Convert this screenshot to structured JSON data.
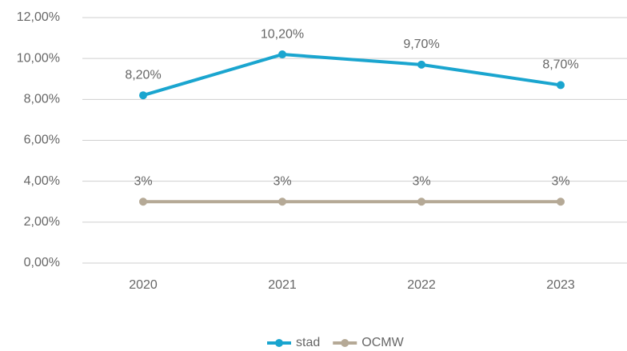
{
  "chart_data": {
    "type": "line",
    "categories": [
      "2020",
      "2021",
      "2022",
      "2023"
    ],
    "series": [
      {
        "name": "stad",
        "color": "#1aa5cf",
        "values": [
          8.2,
          10.2,
          9.7,
          8.7
        ],
        "value_labels": [
          "8,20%",
          "10,20%",
          "9,70%",
          "8,70%"
        ]
      },
      {
        "name": "OCMW",
        "color": "#b5a996",
        "values": [
          3,
          3,
          3,
          3
        ],
        "value_labels": [
          "3%",
          "3%",
          "3%",
          "3%"
        ]
      }
    ],
    "ylim": [
      0,
      12
    ],
    "yticks": [
      {
        "value": 0,
        "label": "0,00%"
      },
      {
        "value": 2,
        "label": "2,00%"
      },
      {
        "value": 4,
        "label": "4,00%"
      },
      {
        "value": 6,
        "label": "6,00%"
      },
      {
        "value": 8,
        "label": "8,00%"
      },
      {
        "value": 10,
        "label": "10,00%"
      },
      {
        "value": 12,
        "label": "12,00%"
      }
    ],
    "grid": true,
    "legend": "bottom"
  }
}
